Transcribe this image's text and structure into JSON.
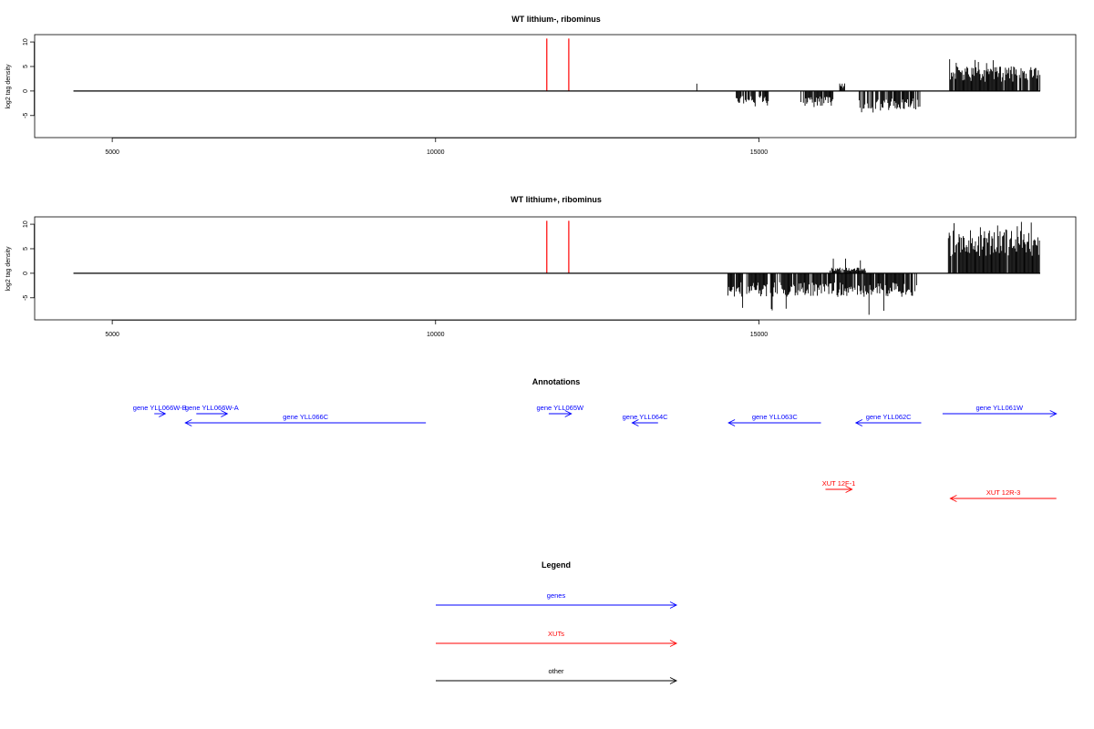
{
  "chart_data": [
    {
      "type": "bar",
      "title": "WT lithium-, ribominus",
      "ylabel": "log2 tag density",
      "xlabel": "",
      "xlim": [
        3800,
        19900
      ],
      "ylim": [
        -9.5,
        11.5
      ],
      "xticks": [
        5000,
        10000,
        15000
      ],
      "yticks": [
        -5,
        0,
        5,
        10
      ],
      "baseline": {
        "x": [
          4400,
          19350
        ],
        "y": 0
      },
      "markers": {
        "color": "#ff0000",
        "x": [
          11720,
          12060
        ],
        "y": [
          0,
          10.7
        ]
      },
      "signal": {
        "positive_regions": [
          {
            "x": [
              17950,
              19350
            ],
            "peak": 6.5,
            "typical": 4.2
          },
          {
            "x": [
              14040,
              14040
            ],
            "peak": 1.5,
            "typical": 1.5
          },
          {
            "x": [
              16250,
              16330
            ],
            "peak": 1.6,
            "typical": 1.3
          }
        ],
        "negative_regions": [
          {
            "x": [
              14650,
              15150
            ],
            "peak": -3.5,
            "typical": -2.2
          },
          {
            "x": [
              15650,
              16150
            ],
            "peak": -3.5,
            "typical": -2.5
          },
          {
            "x": [
              16550,
              17500
            ],
            "peak": -4.5,
            "typical": -3.2
          }
        ]
      }
    },
    {
      "type": "bar",
      "title": "WT lithium+, ribominus",
      "ylabel": "log2 tag density",
      "xlabel": "",
      "xlim": [
        3800,
        19900
      ],
      "ylim": [
        -9.5,
        11.5
      ],
      "xticks": [
        5000,
        10000,
        15000
      ],
      "yticks": [
        -5,
        0,
        5,
        10
      ],
      "baseline": {
        "x": [
          4400,
          19350
        ],
        "y": 0
      },
      "markers": {
        "color": "#ff0000",
        "x": [
          11720,
          12060
        ],
        "y": [
          0,
          10.7
        ]
      },
      "signal": {
        "positive_regions": [
          {
            "x": [
              17930,
              19350
            ],
            "peak": 10.5,
            "typical": 7.5
          },
          {
            "x": [
              16100,
              16650
            ],
            "peak": 3.2,
            "typical": 1.0
          }
        ],
        "negative_regions": [
          {
            "x": [
              14520,
              17450
            ],
            "peak": -8.5,
            "typical": -4.0
          }
        ]
      }
    }
  ],
  "annotations": {
    "title": "Annotations",
    "genes": [
      {
        "label": "gene YLL066W-B",
        "x1": 5650,
        "x2": 5820,
        "row": 0
      },
      {
        "label": "gene YLL066W-A",
        "x1": 6300,
        "x2": 6780,
        "row": 0
      },
      {
        "label": "gene YLL066C",
        "x1": 9850,
        "x2": 6130,
        "row": 1
      },
      {
        "label": "gene YLL065W",
        "x1": 11750,
        "x2": 12100,
        "row": 0
      },
      {
        "label": "gene YLL064C",
        "x1": 13440,
        "x2": 13040,
        "row": 1
      },
      {
        "label": "gene YLL063C",
        "x1": 15960,
        "x2": 14530,
        "row": 1
      },
      {
        "label": "gene YLL062C",
        "x1": 17510,
        "x2": 16500,
        "row": 1
      },
      {
        "label": "gene YLL061W",
        "x1": 17840,
        "x2": 19600,
        "row": 0
      }
    ],
    "xuts": [
      {
        "label": "XUT 12F-1",
        "x1": 16030,
        "x2": 16440,
        "row": 2
      },
      {
        "label": "XUT 12R-3",
        "x1": 19600,
        "x2": 17960,
        "row": 3
      }
    ]
  },
  "legend": {
    "title": "Legend",
    "items": [
      {
        "label": "genes",
        "color": "#0000ff"
      },
      {
        "label": "XUTs",
        "color": "#ff0000"
      },
      {
        "label": "other",
        "color": "#000000"
      }
    ]
  }
}
